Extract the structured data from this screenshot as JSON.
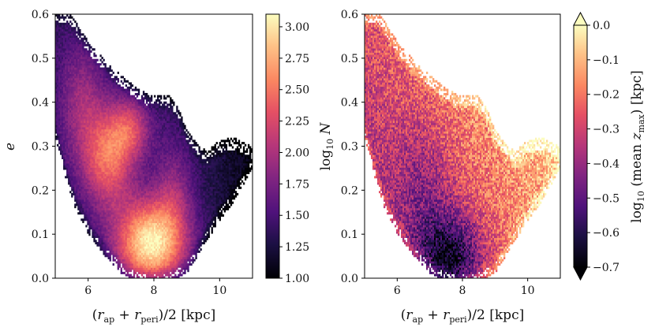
{
  "chart_data": [
    {
      "type": "heatmap",
      "panel": "left",
      "title": "",
      "xlabel": "(r_ap + r_peri)/2 [kpc]",
      "ylabel": "e",
      "xlim": [
        5.0,
        11.0
      ],
      "ylim": [
        0.0,
        0.6
      ],
      "xticks": [
        "6",
        "8",
        "10"
      ],
      "xtick_values": [
        6,
        8,
        10
      ],
      "yticks": [
        "0.0",
        "0.1",
        "0.2",
        "0.3",
        "0.4",
        "0.5",
        "0.6"
      ],
      "ytick_values": [
        0.0,
        0.1,
        0.2,
        0.3,
        0.4,
        0.5,
        0.6
      ],
      "colormap": "magma",
      "colorbar": {
        "label": "log10 N",
        "range": [
          1.0,
          3.1
        ],
        "ticks": [
          "1.00",
          "1.25",
          "1.50",
          "1.75",
          "2.00",
          "2.25",
          "2.50",
          "2.75",
          "3.00"
        ],
        "tick_values": [
          1.0,
          1.25,
          1.5,
          1.75,
          2.0,
          2.25,
          2.5,
          2.75,
          3.0
        ],
        "extend": "neither"
      },
      "upper_envelope": [
        {
          "x": 5.0,
          "e": 0.6
        },
        {
          "x": 5.4,
          "e": 0.6
        },
        {
          "x": 6.0,
          "e": 0.53
        },
        {
          "x": 6.6,
          "e": 0.48
        },
        {
          "x": 7.2,
          "e": 0.44
        },
        {
          "x": 7.8,
          "e": 0.41
        },
        {
          "x": 8.4,
          "e": 0.41
        },
        {
          "x": 8.7,
          "e": 0.39
        },
        {
          "x": 9.0,
          "e": 0.33
        },
        {
          "x": 9.3,
          "e": 0.3
        },
        {
          "x": 9.6,
          "e": 0.28
        },
        {
          "x": 9.9,
          "e": 0.3
        },
        {
          "x": 10.2,
          "e": 0.31
        },
        {
          "x": 10.5,
          "e": 0.31
        },
        {
          "x": 10.8,
          "e": 0.3
        },
        {
          "x": 11.0,
          "e": 0.29
        }
      ],
      "lower_envelope": [
        {
          "x": 5.0,
          "e": 0.33
        },
        {
          "x": 5.3,
          "e": 0.24
        },
        {
          "x": 5.6,
          "e": 0.17
        },
        {
          "x": 6.0,
          "e": 0.11
        },
        {
          "x": 6.5,
          "e": 0.06
        },
        {
          "x": 7.0,
          "e": 0.02
        },
        {
          "x": 7.5,
          "e": 0.0
        },
        {
          "x": 8.5,
          "e": 0.0
        },
        {
          "x": 9.0,
          "e": 0.02
        },
        {
          "x": 9.5,
          "e": 0.08
        },
        {
          "x": 10.0,
          "e": 0.14
        },
        {
          "x": 10.5,
          "e": 0.19
        },
        {
          "x": 11.0,
          "e": 0.26
        }
      ],
      "density_peak": {
        "x": 7.9,
        "e": 0.08,
        "value": 3.05
      }
    },
    {
      "type": "heatmap",
      "panel": "right",
      "title": "",
      "xlabel": "(r_ap + r_peri)/2 [kpc]",
      "ylabel": "",
      "xlim": [
        5.0,
        11.0
      ],
      "ylim": [
        0.0,
        0.6
      ],
      "xticks": [
        "6",
        "8",
        "10"
      ],
      "xtick_values": [
        6,
        8,
        10
      ],
      "yticks": [
        "0.0",
        "0.1",
        "0.2",
        "0.3",
        "0.4",
        "0.5",
        "0.6"
      ],
      "ytick_values": [
        0.0,
        0.1,
        0.2,
        0.3,
        0.4,
        0.5,
        0.6
      ],
      "colormap": "magma",
      "colorbar": {
        "label": "log10 (mean z_max) [kpc]",
        "range": [
          -0.7,
          0.0
        ],
        "ticks": [
          "0.0",
          "−0.1",
          "−0.2",
          "−0.3",
          "−0.4",
          "−0.5",
          "−0.6",
          "−0.7"
        ],
        "tick_values": [
          0.0,
          -0.1,
          -0.2,
          -0.3,
          -0.4,
          -0.5,
          -0.6,
          -0.7
        ],
        "extend": "both"
      },
      "trend": "mean z_max low near e≈0.05 at x≈7.5–8 kpc, rising toward high e and large radius"
    }
  ]
}
